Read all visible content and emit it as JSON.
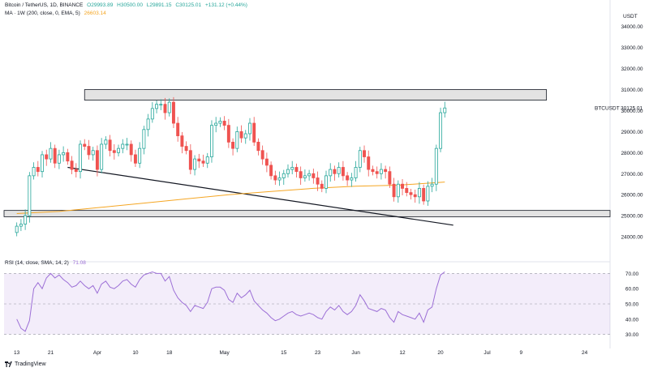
{
  "header": {
    "symbol": "Bitcoin / TetherUS, 1D, BINANCE",
    "open": "O29993.89",
    "high": "H30500.00",
    "low": "L29891.15",
    "close": "C30125.01",
    "change": "+131.12 (+0.44%)",
    "ma_label": "MA · 1W (200, close, 0, EMA, 5)",
    "ma_value": "26603.14",
    "rsi_label": "RSI (14, close, SMA, 14, 2)",
    "rsi_value": "71.08"
  },
  "branding": {
    "name": "TradingView"
  },
  "colors": {
    "up": "#26a69a",
    "down": "#ef5350",
    "ma": "#f5a623",
    "rsi": "#9c6fd6",
    "trendline": "#131722",
    "zone_fill": "#d9d9d9"
  },
  "chart_data": [
    {
      "type": "candlestick",
      "title": "Bitcoin / TetherUS, 1D, BINANCE",
      "ylabel": "USDT",
      "ylim": [
        23000,
        34800
      ],
      "y_ticks": [
        24000,
        25000,
        26000,
        27000,
        28000,
        29000,
        30000,
        31000,
        32000,
        33000,
        34000
      ],
      "y_tick_labels": [
        "24000.00",
        "25000.00",
        "26000.00",
        "27000.00",
        "28000.00",
        "29000.00",
        "30000.00",
        "31000.00",
        "32000.00",
        "33000.00",
        "34000.00"
      ],
      "price_label": {
        "text": "BTCUSDT",
        "value": "30125.01"
      },
      "x_ticks": [
        {
          "day": 0,
          "label": "13"
        },
        {
          "day": 8,
          "label": "21"
        },
        {
          "day": 19,
          "label": "Apr"
        },
        {
          "day": 28,
          "label": "10"
        },
        {
          "day": 36,
          "label": "18"
        },
        {
          "day": 49,
          "label": "May"
        },
        {
          "day": 63,
          "label": "15"
        },
        {
          "day": 71,
          "label": "23"
        },
        {
          "day": 80,
          "label": "Jun"
        },
        {
          "day": 91,
          "label": "12"
        },
        {
          "day": 100,
          "label": "20"
        },
        {
          "day": 111,
          "label": "Jul"
        },
        {
          "day": 119,
          "label": "9"
        },
        {
          "day": 134,
          "label": "24"
        }
      ],
      "xlim": [
        -3,
        140
      ],
      "closes": [
        24500,
        24600,
        25000,
        26900,
        27300,
        27100,
        27900,
        27700,
        28200,
        27500,
        27900,
        28000,
        27600,
        27200,
        27100,
        28400,
        28300,
        27900,
        28100,
        27200,
        28400,
        28600,
        28100,
        28000,
        28200,
        28400,
        28400,
        27900,
        27500,
        28200,
        29100,
        29600,
        30100,
        30300,
        30300,
        29900,
        30400,
        29400,
        28800,
        28300,
        28100,
        27200,
        27700,
        27600,
        27500,
        27800,
        29300,
        29400,
        29500,
        29300,
        28500,
        28200,
        29000,
        28700,
        28900,
        29400,
        28500,
        28100,
        27700,
        27400,
        26900,
        26700,
        26800,
        27000,
        27200,
        27300,
        27100,
        26800,
        26900,
        27000,
        26800,
        26500,
        26300,
        26900,
        27200,
        27000,
        27300,
        26900,
        26700,
        26800,
        27300,
        28100,
        27800,
        27200,
        27100,
        27000,
        27200,
        27100,
        26500,
        25900,
        26500,
        26300,
        26100,
        26000,
        25900,
        26300,
        25700,
        26400,
        26500,
        28200,
        29900,
        30125
      ],
      "ma_series": {
        "name": "MA 1W 200 EMA",
        "points": [
          {
            "day": 0,
            "value": 25100
          },
          {
            "day": 10,
            "value": 25200
          },
          {
            "day": 20,
            "value": 25400
          },
          {
            "day": 30,
            "value": 25600
          },
          {
            "day": 40,
            "value": 25800
          },
          {
            "day": 50,
            "value": 26000
          },
          {
            "day": 60,
            "value": 26150
          },
          {
            "day": 70,
            "value": 26300
          },
          {
            "day": 80,
            "value": 26400
          },
          {
            "day": 90,
            "value": 26450
          },
          {
            "day": 101,
            "value": 26603
          }
        ]
      },
      "annotations": [
        {
          "type": "zone",
          "from_day": 16,
          "to_day": 125,
          "low": 30500,
          "high": 31000
        },
        {
          "type": "zone",
          "from_day": -3,
          "to_day": 140,
          "low": 24950,
          "high": 25250
        },
        {
          "type": "trendline",
          "from": {
            "day": 12,
            "value": 27300
          },
          "to": {
            "day": 103,
            "value": 24550
          }
        }
      ]
    },
    {
      "type": "line",
      "title": "RSI (14, close, SMA, 14, 2)",
      "ylim": [
        25,
        75
      ],
      "y_ticks": [
        30,
        40,
        50,
        60,
        70
      ],
      "y_tick_labels": [
        "30.00",
        "40.00",
        "50.00",
        "60.00",
        "70.00"
      ],
      "band": [
        30,
        70
      ],
      "series": [
        {
          "name": "RSI",
          "values": [
            40,
            34,
            32,
            39,
            60,
            64,
            60,
            67,
            70,
            67,
            69,
            66,
            64,
            61,
            62,
            65,
            62,
            60,
            62,
            57,
            63,
            65,
            61,
            60,
            62,
            65,
            66,
            63,
            61,
            66,
            69,
            70,
            71,
            70,
            70,
            65,
            68,
            59,
            54,
            51,
            49,
            45,
            49,
            48,
            47,
            51,
            60,
            61,
            61,
            59,
            53,
            51,
            57,
            54,
            56,
            59,
            52,
            49,
            46,
            44,
            41,
            39,
            40,
            42,
            44,
            45,
            43,
            42,
            43,
            44,
            43,
            41,
            40,
            45,
            48,
            46,
            49,
            45,
            43,
            45,
            49,
            56,
            52,
            47,
            46,
            45,
            47,
            46,
            41,
            38,
            45,
            43,
            42,
            41,
            40,
            44,
            38,
            46,
            48,
            60,
            69,
            71.08
          ]
        }
      ]
    }
  ]
}
